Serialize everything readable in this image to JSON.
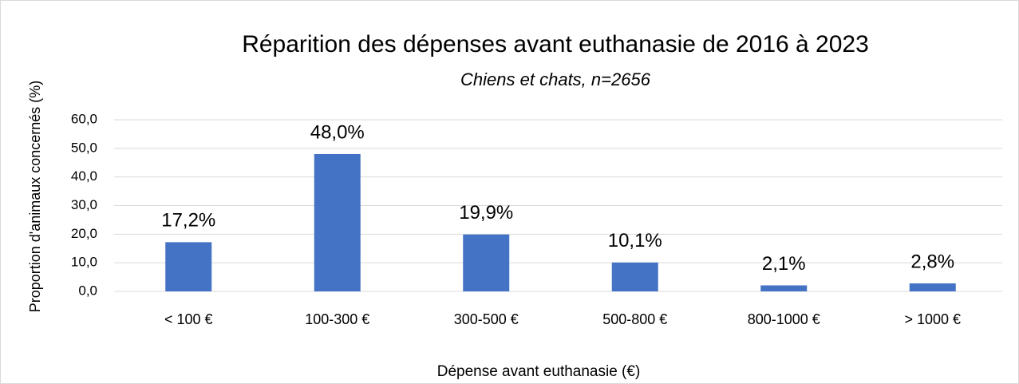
{
  "chart_data": {
    "type": "bar",
    "title": "Réparition des dépenses avant euthanasie de 2016 à 2023",
    "subtitle": "Chiens et chats, n=2656",
    "x_label": "Dépense avant euthanasie (€)",
    "y_label": "Proportion d'animaux concernés (%)",
    "categories": [
      "< 100 €",
      "100-300 €",
      "300-500 €",
      "500-800 €",
      "800-1000 €",
      "> 1000 €"
    ],
    "values": [
      17.2,
      48.0,
      19.9,
      10.1,
      2.1,
      2.8
    ],
    "value_labels": [
      "17,2%",
      "48,0%",
      "19,9%",
      "10,1%",
      "2,1%",
      "2,8%"
    ],
    "color": "#4472c4",
    "ylim": [
      0,
      60
    ],
    "yticks": [
      {
        "value": 0,
        "label": "0,0"
      },
      {
        "value": 10,
        "label": "10,0"
      },
      {
        "value": 20,
        "label": "20,0"
      },
      {
        "value": 30,
        "label": "30,0"
      },
      {
        "value": 40,
        "label": "40,0"
      },
      {
        "value": 50,
        "label": "50,0"
      },
      {
        "value": 60,
        "label": "60,0"
      }
    ],
    "grid": true
  }
}
